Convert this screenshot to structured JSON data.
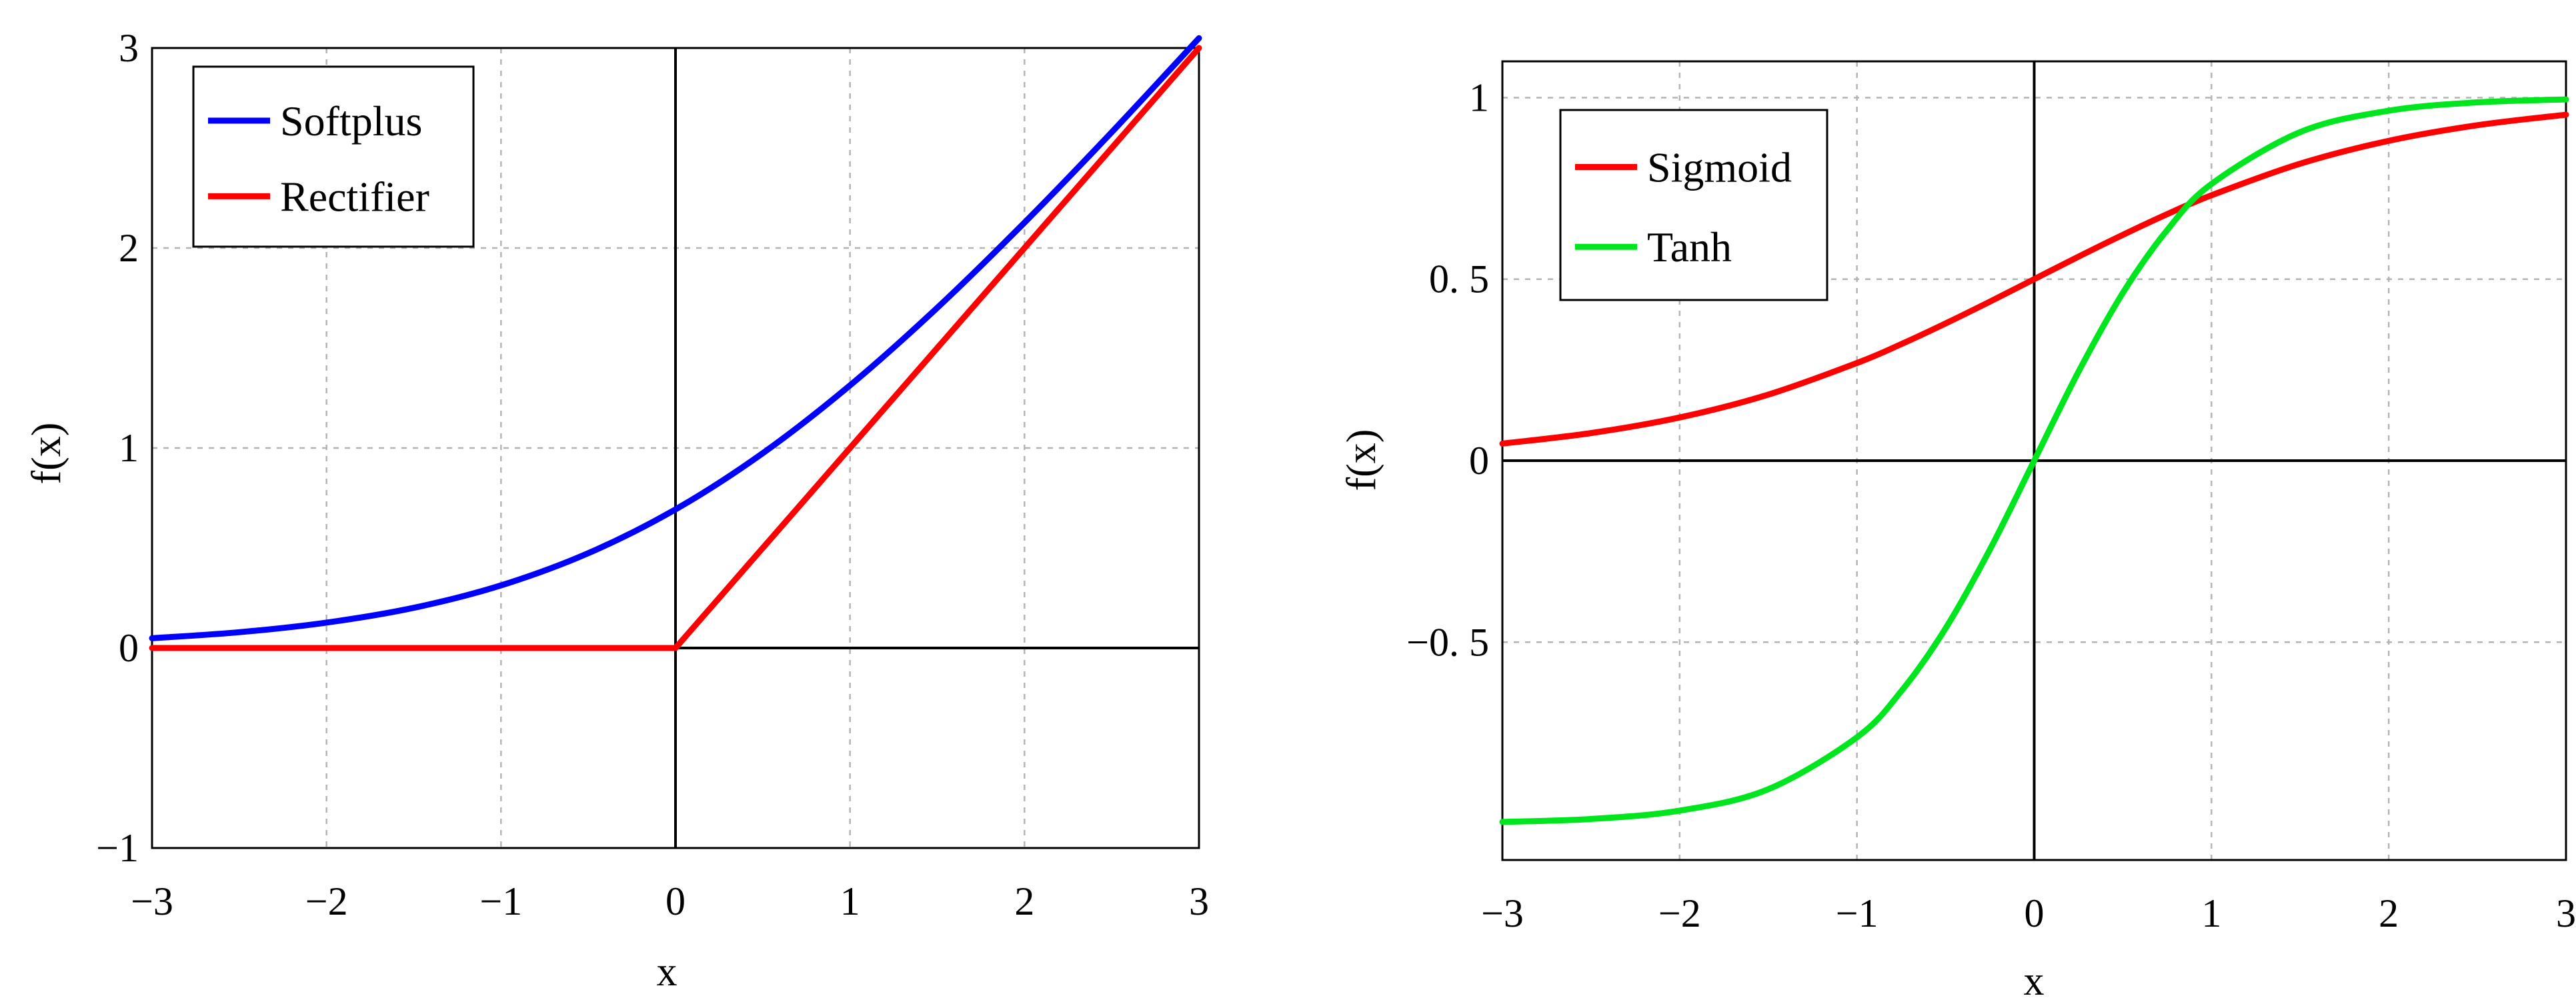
{
  "chart_data": [
    {
      "type": "line",
      "title": "",
      "xlabel": "x",
      "ylabel": "f(x)",
      "xlim": [
        -3,
        3
      ],
      "ylim": [
        -1,
        3
      ],
      "xticks": [
        -3,
        -2,
        -1,
        0,
        1,
        2,
        3
      ],
      "xtick_labels": [
        "−3",
        "−2",
        "−1",
        "0",
        "1",
        "2",
        "3"
      ],
      "yticks": [
        -1,
        0,
        1,
        2,
        3
      ],
      "ytick_labels": [
        "−1",
        "0",
        "1",
        "2",
        "3"
      ],
      "grid": true,
      "legend_position": "top-left",
      "x": [
        -3,
        -2.5,
        -2,
        -1.5,
        -1,
        -0.5,
        0,
        0.5,
        1,
        1.5,
        2,
        2.5,
        3
      ],
      "series": [
        {
          "name": "Softplus",
          "color": "#0000ff",
          "values": [
            0.049,
            0.079,
            0.127,
            0.201,
            0.313,
            0.474,
            0.693,
            0.974,
            1.313,
            1.701,
            2.127,
            2.579,
            3.049
          ]
        },
        {
          "name": "Rectifier",
          "color": "#ff0000",
          "values": [
            0,
            0,
            0,
            0,
            0,
            0,
            0,
            0.5,
            1,
            1.5,
            2,
            2.5,
            3
          ]
        }
      ]
    },
    {
      "type": "line",
      "title": "",
      "xlabel": "x",
      "ylabel": "f(x)",
      "xlim": [
        -3,
        3
      ],
      "ylim": [
        -1.1,
        1.1
      ],
      "xticks": [
        -3,
        -2,
        -1,
        0,
        1,
        2,
        3
      ],
      "xtick_labels": [
        "−3",
        "−2",
        "−1",
        "0",
        "1",
        "2",
        "3"
      ],
      "yticks": [
        -0.5,
        0,
        0.5,
        1
      ],
      "ytick_labels": [
        "−0. 5",
        "0",
        "0. 5",
        "1"
      ],
      "grid": true,
      "legend_position": "top-left",
      "x": [
        -3,
        -2.5,
        -2,
        -1.5,
        -1,
        -0.75,
        -0.5,
        -0.25,
        0,
        0.25,
        0.5,
        0.75,
        1,
        1.5,
        2,
        2.5,
        3
      ],
      "series": [
        {
          "name": "Sigmoid",
          "color": "#ff0000",
          "values": [
            0.047,
            0.076,
            0.119,
            0.182,
            0.269,
            0.321,
            0.378,
            0.438,
            0.5,
            0.562,
            0.622,
            0.679,
            0.731,
            0.818,
            0.881,
            0.924,
            0.953
          ]
        },
        {
          "name": "Tanh",
          "color": "#00e61e",
          "values": [
            -0.995,
            -0.987,
            -0.964,
            -0.905,
            -0.762,
            -0.635,
            -0.462,
            -0.245,
            0,
            0.245,
            0.462,
            0.635,
            0.762,
            0.905,
            0.964,
            0.987,
            0.995
          ]
        }
      ]
    }
  ]
}
